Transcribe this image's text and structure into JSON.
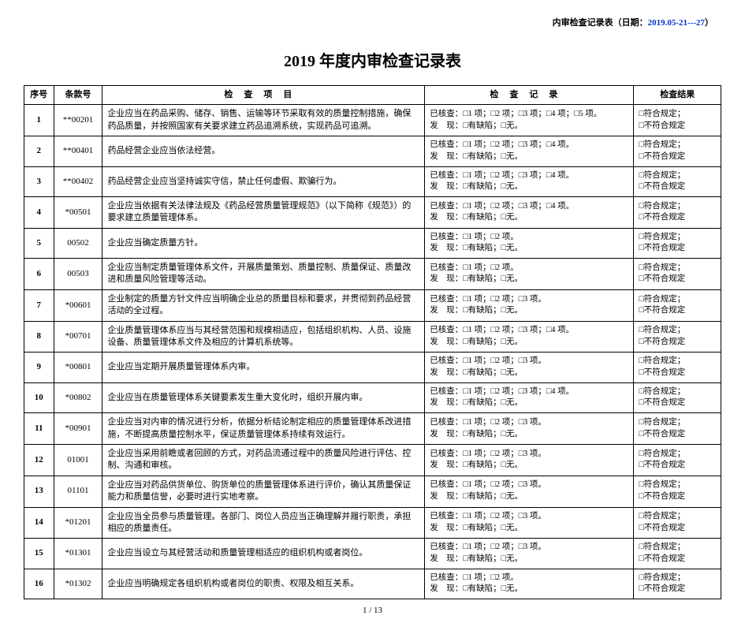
{
  "header": {
    "prefix": "内审检查记录表（日期：",
    "date": "2019.05-21---27",
    "suffix": "）"
  },
  "title": "2019 年度内审检查记录表",
  "columns": {
    "idx": "序号",
    "code": "条款号",
    "item": "检查项目",
    "rec": "检查记录",
    "res": "检查结果"
  },
  "result_text": "□符合规定；\n□不符合规定",
  "rows": [
    {
      "idx": "1",
      "code": "**00201",
      "item": "企业应当在药品采购、储存、销售、运输等环节采取有效的质量控制措施，确保药品质量，并按照国家有关要求建立药品追溯系统，实现药品可追溯。",
      "rec": "已核查：□1 项；□2 项；□3 项；□4 项；□5 项。\n发　现：□有缺陷；□无。"
    },
    {
      "idx": "2",
      "code": "**00401",
      "item": "药品经营企业应当依法经营。",
      "rec": "已核查：□1 项；□2 项；□3 项；□4 项。\n发　现：□有缺陷；□无。"
    },
    {
      "idx": "3",
      "code": "**00402",
      "item": "药品经营企业应当坚持诚实守信，禁止任何虚假、欺骗行为。",
      "rec": "已核查：□1 项；□2 项；□3 项；□4 项。\n发　现：□有缺陷；□无。"
    },
    {
      "idx": "4",
      "code": "*00501",
      "item": "企业应当依据有关法律法规及《药品经营质量管理规范》（以下简称《规范》）的要求建立质量管理体系。",
      "rec": "已核查：□1 项；□2 项；□3 项；□4 项。\n发　现：□有缺陷；□无。"
    },
    {
      "idx": "5",
      "code": "00502",
      "item": "企业应当确定质量方针。",
      "rec": "已核查：□1 项；□2 项。\n发　现：□有缺陷；□无。"
    },
    {
      "idx": "6",
      "code": "00503",
      "item": "企业应当制定质量管理体系文件，开展质量策划、质量控制、质量保证、质量改进和质量风险管理等活动。",
      "rec": "已核查：□1 项；□2 项。\n发　现：□有缺陷；□无。"
    },
    {
      "idx": "7",
      "code": "*00601",
      "item": "企业制定的质量方针文件应当明确企业总的质量目标和要求，并贯彻到药品经营活动的全过程。",
      "rec": "已核查：□1 项；□2 项；□3 项。\n发　现：□有缺陷；□无。"
    },
    {
      "idx": "8",
      "code": "*00701",
      "item": "企业质量管理体系应当与其经营范围和规模相适应，包括组织机构、人员、设施设备、质量管理体系文件及相应的计算机系统等。",
      "rec": "已核查：□1 项；□2 项；□3 项；□4 项。\n发　现：□有缺陷；□无。"
    },
    {
      "idx": "9",
      "code": "*00801",
      "item": "企业应当定期开展质量管理体系内审。",
      "rec": "已核查：□1 项；□2 项；□3 项。\n发　现：□有缺陷；□无。"
    },
    {
      "idx": "10",
      "code": "*00802",
      "item": "企业应当在质量管理体系关键要素发生重大变化时，组织开展内审。",
      "rec": "已核查：□1 项；□2 项；□3 项；□4 项。\n发　现：□有缺陷；□无。"
    },
    {
      "idx": "11",
      "code": "*00901",
      "item": "企业应当对内审的情况进行分析，依据分析结论制定相应的质量管理体系改进措施，不断提高质量控制水平，保证质量管理体系持续有效运行。",
      "rec": "已核查：□1 项；□2 项；□3 项。\n发　现：□有缺陷；□无。"
    },
    {
      "idx": "12",
      "code": "01001",
      "item": "企业应当采用前瞻或者回顾的方式，对药品流通过程中的质量风险进行评估、控制、沟通和审核。",
      "rec": "已核查：□1 项；□2 项；□3 项。\n发　现：□有缺陷；□无。"
    },
    {
      "idx": "13",
      "code": "01101",
      "item": "企业应当对药品供货单位、购货单位的质量管理体系进行评价，确认其质量保证能力和质量信誉，必要时进行实地考察。",
      "rec": "已核查：□1 项；□2 项；□3 项。\n发　现：□有缺陷；□无。"
    },
    {
      "idx": "14",
      "code": "*01201",
      "item": "企业应当全员参与质量管理。各部门、岗位人员应当正确理解并履行职责，承担相应的质量责任。",
      "rec": "已核查：□1 项；□2 项；□3 项。\n发　现：□有缺陷；□无。"
    },
    {
      "idx": "15",
      "code": "*01301",
      "item": "企业应当设立与其经营活动和质量管理相适应的组织机构或者岗位。",
      "rec": "已核查：□1 项；□2 项；□3 项。\n发　现：□有缺陷；□无。"
    },
    {
      "idx": "16",
      "code": "*01302",
      "item": "企业应当明确规定各组织机构或者岗位的职责、权限及相互关系。",
      "rec": "已核查：□1 项；□2 项。\n发　现：□有缺陷；□无。"
    }
  ],
  "page": {
    "current": "1",
    "sep": " / ",
    "total": "13"
  }
}
